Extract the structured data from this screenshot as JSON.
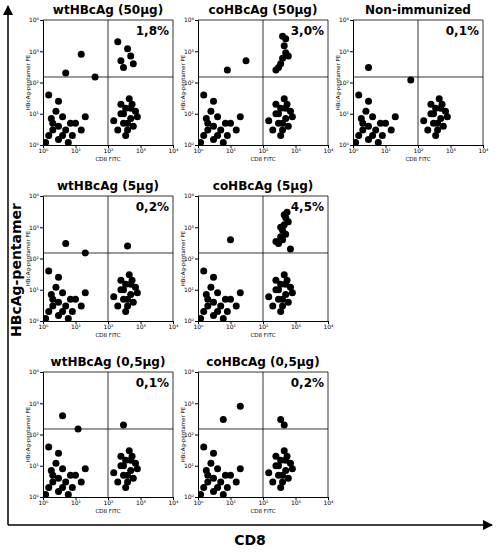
{
  "figure": {
    "x_label": "CD8",
    "y_label": "HBcAg-pentamer"
  },
  "chart_data": [
    {
      "type": "scatter",
      "title": "wtHBcAg (50µg)",
      "annotation": "1,8%",
      "x_label": "CD8 FITC",
      "y_label": "HBcAg-pentamer PE",
      "log": true,
      "grid": false,
      "marker": "circle",
      "color": "#000000",
      "xlim": [
        1,
        10000
      ],
      "ylim": [
        1,
        10000
      ],
      "xticks": [
        {
          "value": 1,
          "label": "10⁰"
        },
        {
          "value": 10,
          "label": "10¹"
        },
        {
          "value": 100,
          "label": "10²"
        },
        {
          "value": 1000,
          "label": "10³"
        },
        {
          "value": 10000,
          "label": "10⁴"
        }
      ],
      "yticks": [
        {
          "value": 1,
          "label": "10⁰"
        },
        {
          "value": 10,
          "label": "10¹"
        },
        {
          "value": 100,
          "label": "10²"
        },
        {
          "value": 1000,
          "label": "10³"
        },
        {
          "value": 10000,
          "label": "10⁴"
        }
      ],
      "x_gate": 100,
      "y_gate": 150,
      "x": [
        1.5,
        3,
        5,
        2,
        8,
        4,
        1.2,
        10,
        6,
        2.5,
        15,
        3,
        20,
        1.5,
        200,
        400,
        300,
        600,
        500,
        250,
        800,
        350,
        450,
        150,
        2,
        4,
        3,
        7,
        1.8,
        300,
        500,
        400,
        250,
        350,
        700,
        550,
        300,
        500,
        400,
        250,
        600,
        200,
        5,
        15,
        40
      ],
      "values": [
        2,
        1.5,
        3,
        5,
        2,
        8,
        1.2,
        5,
        1.2,
        12,
        3,
        25,
        8,
        40,
        3,
        5,
        10,
        4,
        15,
        20,
        8,
        2,
        30,
        6,
        3,
        2,
        4,
        5,
        7,
        5,
        7,
        3,
        10,
        15,
        12,
        20,
        300,
        700,
        1200,
        500,
        400,
        2000,
        200,
        800,
        150
      ]
    },
    {
      "type": "scatter",
      "title": "coHBcAg (50µg)",
      "annotation": "3,0%",
      "x_label": "CD8 FITC",
      "y_label": "HBcAg-pentamer PE",
      "log": true,
      "grid": false,
      "marker": "circle",
      "color": "#000000",
      "xlim": [
        1,
        10000
      ],
      "ylim": [
        1,
        10000
      ],
      "xticks": [
        {
          "value": 1,
          "label": "10⁰"
        },
        {
          "value": 10,
          "label": "10¹"
        },
        {
          "value": 100,
          "label": "10²"
        },
        {
          "value": 1000,
          "label": "10³"
        },
        {
          "value": 10000,
          "label": "10⁴"
        }
      ],
      "yticks": [
        {
          "value": 1,
          "label": "10⁰"
        },
        {
          "value": 10,
          "label": "10¹"
        },
        {
          "value": 100,
          "label": "10²"
        },
        {
          "value": 1000,
          "label": "10³"
        },
        {
          "value": 10000,
          "label": "10⁴"
        }
      ],
      "x_gate": 100,
      "y_gate": 150,
      "x": [
        1.5,
        3,
        5,
        2,
        8,
        4,
        1.2,
        10,
        6,
        2.5,
        15,
        3,
        20,
        1.5,
        200,
        400,
        300,
        600,
        500,
        250,
        800,
        350,
        450,
        150,
        2,
        4,
        3,
        7,
        1.8,
        300,
        500,
        400,
        250,
        350,
        700,
        550,
        300,
        400,
        500,
        450,
        350,
        600,
        250,
        500,
        400,
        8,
        30
      ],
      "values": [
        2,
        1.5,
        3,
        5,
        2,
        8,
        1.2,
        5,
        1.2,
        12,
        3,
        25,
        8,
        40,
        3,
        5,
        10,
        4,
        15,
        20,
        8,
        2,
        30,
        6,
        3,
        2,
        4,
        5,
        7,
        5,
        7,
        3,
        10,
        15,
        12,
        20,
        300,
        600,
        900,
        1500,
        400,
        700,
        250,
        2500,
        3000,
        250,
        500
      ]
    },
    {
      "type": "scatter",
      "title": "Non-immunized",
      "annotation": "0,1%",
      "x_label": "CD8 FITC",
      "y_label": "HBcAg-pentamer PE",
      "log": true,
      "grid": false,
      "marker": "circle",
      "color": "#000000",
      "xlim": [
        1,
        10000
      ],
      "ylim": [
        1,
        10000
      ],
      "xticks": [
        {
          "value": 1,
          "label": "10⁰"
        },
        {
          "value": 10,
          "label": "10¹"
        },
        {
          "value": 100,
          "label": "10²"
        },
        {
          "value": 1000,
          "label": "10³"
        },
        {
          "value": 10000,
          "label": "10⁴"
        }
      ],
      "yticks": [
        {
          "value": 1,
          "label": "10⁰"
        },
        {
          "value": 10,
          "label": "10¹"
        },
        {
          "value": 100,
          "label": "10²"
        },
        {
          "value": 1000,
          "label": "10³"
        },
        {
          "value": 10000,
          "label": "10⁴"
        }
      ],
      "x_gate": 100,
      "y_gate": 150,
      "x": [
        1.5,
        3,
        5,
        2,
        8,
        4,
        1.2,
        10,
        6,
        2.5,
        15,
        3,
        20,
        1.5,
        200,
        400,
        300,
        600,
        500,
        250,
        800,
        350,
        450,
        150,
        2,
        4,
        3,
        7,
        1.8,
        300,
        500,
        400,
        250,
        350,
        700,
        550,
        3,
        60
      ],
      "values": [
        2,
        1.5,
        3,
        5,
        2,
        8,
        1.2,
        5,
        1.2,
        12,
        3,
        25,
        8,
        40,
        3,
        5,
        10,
        4,
        15,
        20,
        8,
        2,
        30,
        6,
        3,
        2,
        4,
        5,
        7,
        5,
        7,
        3,
        10,
        15,
        12,
        20,
        300,
        120
      ]
    },
    {
      "type": "scatter",
      "title": "wtHBcAg (5µg)",
      "annotation": "0,2%",
      "x_label": "CD8 FITC",
      "y_label": "HBcAg-pentamer PE",
      "log": true,
      "grid": false,
      "marker": "circle",
      "color": "#000000",
      "xlim": [
        1,
        10000
      ],
      "ylim": [
        1,
        10000
      ],
      "xticks": [
        {
          "value": 1,
          "label": "10⁰"
        },
        {
          "value": 10,
          "label": "10¹"
        },
        {
          "value": 100,
          "label": "10²"
        },
        {
          "value": 1000,
          "label": "10³"
        },
        {
          "value": 10000,
          "label": "10⁴"
        }
      ],
      "yticks": [
        {
          "value": 1,
          "label": "10⁰"
        },
        {
          "value": 10,
          "label": "10¹"
        },
        {
          "value": 100,
          "label": "10²"
        },
        {
          "value": 1000,
          "label": "10³"
        },
        {
          "value": 10000,
          "label": "10⁴"
        }
      ],
      "x_gate": 100,
      "y_gate": 150,
      "x": [
        1.5,
        3,
        5,
        2,
        8,
        4,
        1.2,
        10,
        6,
        2.5,
        15,
        3,
        20,
        1.5,
        200,
        400,
        300,
        600,
        500,
        250,
        800,
        350,
        450,
        150,
        2,
        4,
        3,
        7,
        1.8,
        300,
        500,
        400,
        250,
        350,
        700,
        550,
        5,
        400,
        20
      ],
      "values": [
        2,
        1.5,
        3,
        5,
        2,
        8,
        1.2,
        5,
        1.2,
        12,
        3,
        25,
        8,
        40,
        3,
        5,
        10,
        4,
        15,
        20,
        8,
        2,
        30,
        6,
        3,
        2,
        4,
        5,
        7,
        5,
        7,
        3,
        10,
        15,
        12,
        20,
        300,
        250,
        150
      ]
    },
    {
      "type": "scatter",
      "title": "coHBcAg (5µg)",
      "annotation": "4,5%",
      "x_label": "CD8 FITC",
      "y_label": "HBcAg-pentamer PE",
      "log": true,
      "grid": false,
      "marker": "circle",
      "color": "#000000",
      "xlim": [
        1,
        10000
      ],
      "ylim": [
        1,
        10000
      ],
      "xticks": [
        {
          "value": 1,
          "label": "10⁰"
        },
        {
          "value": 10,
          "label": "10¹"
        },
        {
          "value": 100,
          "label": "10²"
        },
        {
          "value": 1000,
          "label": "10³"
        },
        {
          "value": 10000,
          "label": "10⁴"
        }
      ],
      "yticks": [
        {
          "value": 1,
          "label": "10⁰"
        },
        {
          "value": 10,
          "label": "10¹"
        },
        {
          "value": 100,
          "label": "10²"
        },
        {
          "value": 1000,
          "label": "10³"
        },
        {
          "value": 10000,
          "label": "10⁴"
        }
      ],
      "x_gate": 100,
      "y_gate": 150,
      "x": [
        1.5,
        3,
        5,
        2,
        8,
        4,
        1.2,
        10,
        6,
        2.5,
        15,
        3,
        20,
        1.5,
        200,
        400,
        300,
        600,
        500,
        250,
        800,
        350,
        450,
        150,
        2,
        4,
        3,
        7,
        1.8,
        300,
        500,
        400,
        250,
        350,
        700,
        550,
        300,
        350,
        400,
        450,
        500,
        550,
        400,
        500,
        600,
        350,
        450,
        250,
        10,
        700
      ],
      "values": [
        2,
        1.5,
        3,
        5,
        2,
        8,
        1.2,
        5,
        1.2,
        12,
        3,
        25,
        8,
        40,
        3,
        5,
        10,
        4,
        15,
        20,
        8,
        2,
        30,
        6,
        3,
        2,
        4,
        5,
        7,
        5,
        7,
        3,
        10,
        15,
        12,
        20,
        300,
        500,
        800,
        1200,
        2000,
        3000,
        400,
        600,
        1500,
        1000,
        2500,
        350,
        400,
        200
      ]
    },
    {
      "type": "scatter",
      "title": "wtHBcAg (0,5µg)",
      "annotation": "0,1%",
      "x_label": "CD8 FITC",
      "y_label": "HBcAg-pentamer PE",
      "log": true,
      "grid": false,
      "marker": "circle",
      "color": "#000000",
      "xlim": [
        1,
        10000
      ],
      "ylim": [
        1,
        10000
      ],
      "xticks": [
        {
          "value": 1,
          "label": "10⁰"
        },
        {
          "value": 10,
          "label": "10¹"
        },
        {
          "value": 100,
          "label": "10²"
        },
        {
          "value": 1000,
          "label": "10³"
        },
        {
          "value": 10000,
          "label": "10⁴"
        }
      ],
      "yticks": [
        {
          "value": 1,
          "label": "10⁰"
        },
        {
          "value": 10,
          "label": "10¹"
        },
        {
          "value": 100,
          "label": "10²"
        },
        {
          "value": 1000,
          "label": "10³"
        },
        {
          "value": 10000,
          "label": "10⁴"
        }
      ],
      "x_gate": 100,
      "y_gate": 150,
      "x": [
        1.5,
        3,
        5,
        2,
        8,
        4,
        1.2,
        10,
        6,
        2.5,
        15,
        3,
        20,
        1.5,
        200,
        400,
        300,
        600,
        500,
        250,
        800,
        350,
        450,
        150,
        2,
        4,
        3,
        7,
        1.8,
        300,
        500,
        400,
        250,
        350,
        700,
        550,
        4,
        300,
        12
      ],
      "values": [
        2,
        1.5,
        3,
        5,
        2,
        8,
        1.2,
        5,
        1.2,
        12,
        3,
        25,
        8,
        40,
        3,
        5,
        10,
        4,
        15,
        20,
        8,
        2,
        30,
        6,
        3,
        2,
        4,
        5,
        7,
        5,
        7,
        3,
        10,
        15,
        12,
        20,
        400,
        200,
        150
      ]
    },
    {
      "type": "scatter",
      "title": "coHBcAg (0,5µg)",
      "annotation": "0,2%",
      "x_label": "CD8 FITC",
      "y_label": "HBcAg-pentamer PE",
      "log": true,
      "grid": false,
      "marker": "circle",
      "color": "#000000",
      "xlim": [
        1,
        10000
      ],
      "ylim": [
        1,
        10000
      ],
      "xticks": [
        {
          "value": 1,
          "label": "10⁰"
        },
        {
          "value": 10,
          "label": "10¹"
        },
        {
          "value": 100,
          "label": "10²"
        },
        {
          "value": 1000,
          "label": "10³"
        },
        {
          "value": 10000,
          "label": "10⁴"
        }
      ],
      "yticks": [
        {
          "value": 1,
          "label": "10⁰"
        },
        {
          "value": 10,
          "label": "10¹"
        },
        {
          "value": 100,
          "label": "10²"
        },
        {
          "value": 1000,
          "label": "10³"
        },
        {
          "value": 10000,
          "label": "10⁴"
        }
      ],
      "x_gate": 100,
      "y_gate": 150,
      "x": [
        1.5,
        3,
        5,
        2,
        8,
        4,
        1.2,
        10,
        6,
        2.5,
        15,
        3,
        20,
        1.5,
        200,
        400,
        300,
        600,
        500,
        250,
        800,
        350,
        450,
        150,
        2,
        4,
        3,
        7,
        1.8,
        300,
        500,
        400,
        250,
        350,
        700,
        550,
        6,
        350,
        20,
        450
      ],
      "values": [
        2,
        1.5,
        3,
        5,
        2,
        8,
        1.2,
        5,
        1.2,
        12,
        3,
        25,
        8,
        40,
        3,
        5,
        10,
        4,
        15,
        20,
        8,
        2,
        30,
        6,
        3,
        2,
        4,
        5,
        7,
        5,
        7,
        3,
        10,
        15,
        12,
        20,
        300,
        300,
        800,
        200
      ]
    }
  ]
}
